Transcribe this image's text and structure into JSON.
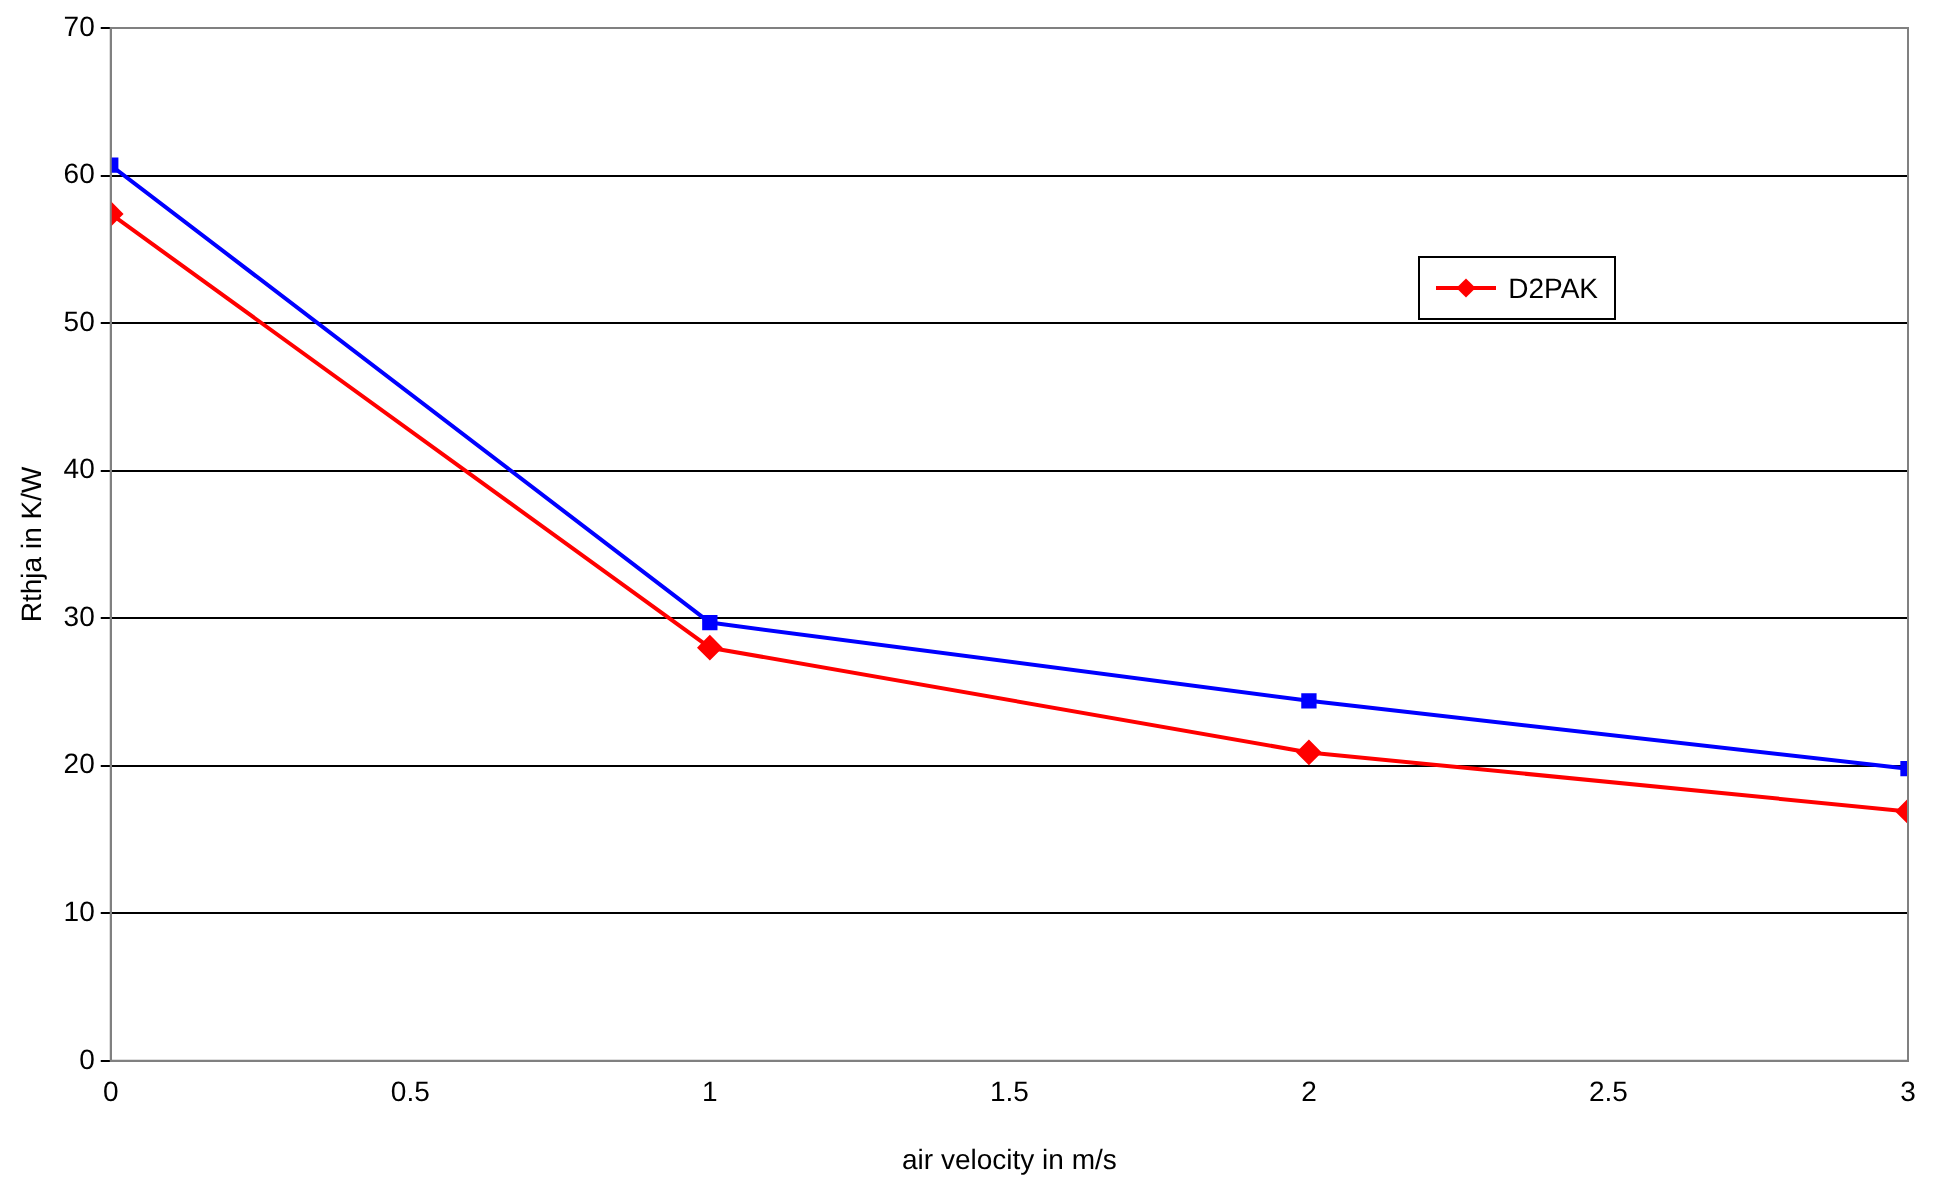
{
  "chart_data": {
    "type": "line",
    "xlabel": "air velocity in m/s",
    "ylabel": "Rthja in K/W",
    "x": [
      0,
      1,
      2,
      3
    ],
    "series": [
      {
        "name": "D2PAK",
        "color": "#ff0000",
        "marker": "diamond",
        "values": [
          57.4,
          28.0,
          20.9,
          16.9
        ]
      },
      {
        "color": "#0000ff",
        "marker": "square",
        "values": [
          60.7,
          29.7,
          24.4,
          19.8
        ]
      }
    ],
    "xlim": [
      0,
      3
    ],
    "xticks": [
      0,
      0.5,
      1,
      1.5,
      2,
      2.5,
      3
    ],
    "ylim": [
      0,
      70
    ],
    "yticks": [
      0,
      10,
      20,
      30,
      40,
      50,
      60,
      70
    ],
    "grid": "y",
    "legend": "right",
    "line_style": "solid"
  }
}
